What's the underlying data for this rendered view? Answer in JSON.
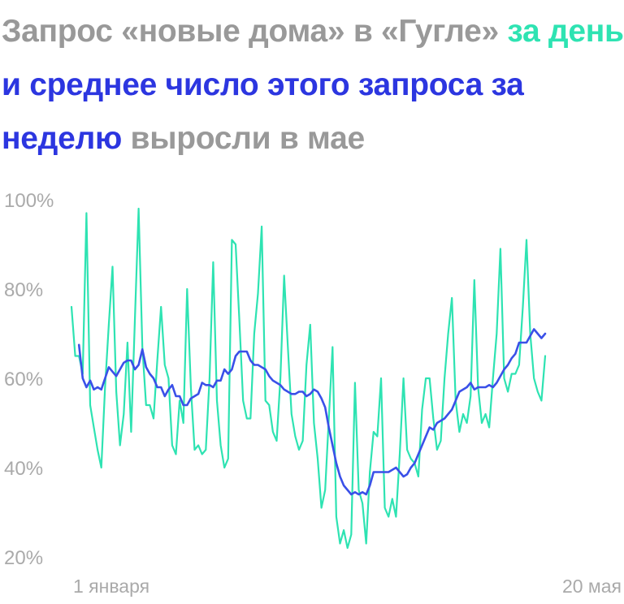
{
  "title": {
    "part1": "Запрос «новые дома» в «Гугле»",
    "part2": "за день",
    "part3": "и среднее число этого запроса за неделю",
    "part4": "выросли в мае"
  },
  "colors": {
    "daily": "#2ee3b2",
    "weekly": "#3a50e8",
    "gray": "#999999",
    "title_blue": "#2c36e0"
  },
  "chart_data": {
    "type": "line",
    "title": "Запрос «новые дома» в «Гугле» за день и среднее число этого запроса за неделю выросли в мае",
    "ylim": [
      20,
      100
    ],
    "yticks": [
      100,
      80,
      60,
      40,
      20
    ],
    "ytick_labels": [
      "100%",
      "80%",
      "60%",
      "40%",
      "20%"
    ],
    "xtick_labels": [
      "1 января",
      "20 мая"
    ],
    "grid": false,
    "series": [
      {
        "name": "за день",
        "values": [
          76,
          65,
          65,
          61,
          97,
          54,
          49,
          44,
          40,
          58,
          72,
          85,
          57,
          45,
          52,
          68,
          48,
          73,
          98,
          67,
          54,
          54,
          51,
          64,
          76,
          63,
          60,
          45,
          43,
          55,
          50,
          80,
          58,
          44,
          45,
          43,
          44,
          60,
          86,
          55,
          45,
          40,
          42,
          91,
          90,
          73,
          55,
          51,
          51,
          70,
          79,
          94,
          55,
          54,
          48,
          46,
          60,
          83,
          67,
          52,
          47,
          44,
          46,
          63,
          72,
          50,
          42,
          31,
          35,
          51,
          67,
          29,
          23,
          26,
          22,
          25,
          59,
          35,
          32,
          23,
          39,
          48,
          47,
          60,
          31,
          29,
          33,
          29,
          43,
          60,
          44,
          42,
          41,
          38,
          53,
          60,
          60,
          51,
          44,
          46,
          60,
          70,
          78,
          55,
          48,
          52,
          50,
          56,
          82,
          58,
          50,
          52,
          49,
          60,
          70,
          89,
          60,
          57,
          61,
          61,
          63,
          76,
          91,
          70,
          60,
          57,
          55,
          65
        ],
        "color": "#2ee3b2"
      },
      {
        "name": "за неделю",
        "values": [
          67.5,
          60,
          58,
          59.5,
          57.5,
          58,
          57.5,
          60,
          62.5,
          61.5,
          60.5,
          62,
          63.5,
          64,
          64,
          62,
          63,
          66.5,
          62.5,
          61,
          60,
          58,
          58,
          56,
          57.5,
          58.5,
          56,
          56,
          54,
          54,
          55.5,
          56,
          56.5,
          59,
          58.5,
          58.5,
          58,
          59.5,
          59.5,
          62,
          61,
          62,
          65,
          66,
          66,
          66,
          64,
          63,
          63,
          62.5,
          62,
          60.5,
          59.5,
          59,
          58.5,
          57.5,
          57,
          56.5,
          56.5,
          57,
          57,
          56,
          56.5,
          57.5,
          57,
          55.5,
          53.5,
          49,
          45,
          41,
          38,
          36,
          35,
          34,
          34.5,
          34,
          34.5,
          34,
          36,
          39,
          39,
          39,
          39,
          39,
          39.5,
          40,
          39,
          38,
          38.5,
          40,
          41,
          43,
          45,
          47,
          49,
          48.5,
          50,
          50.5,
          51,
          52,
          53,
          55,
          57,
          57.5,
          58,
          59,
          57.5,
          58,
          58,
          58,
          58.5,
          58,
          59,
          60.5,
          62,
          63,
          64.5,
          65.5,
          68,
          68,
          68,
          69.5,
          71,
          70,
          69,
          70
        ]
      }
    ]
  }
}
